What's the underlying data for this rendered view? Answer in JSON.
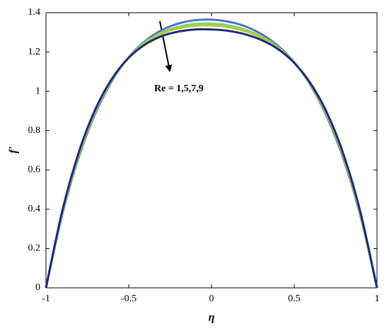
{
  "chart_data": {
    "type": "line",
    "xlabel": "η",
    "ylabel": "f'",
    "annotation": "Re = 1,5,7,9",
    "x": [
      -1,
      -0.9,
      -0.8,
      -0.7,
      -0.6,
      -0.5,
      -0.4,
      -0.3,
      -0.2,
      -0.1,
      0,
      0.1,
      0.2,
      0.3,
      0.4,
      0.5,
      0.6,
      0.7,
      0.8,
      0.9,
      1
    ],
    "series": [
      {
        "color": "#4f6fd6",
        "values": [
          0,
          0.378,
          0.67,
          0.891,
          1.055,
          1.174,
          1.256,
          1.312,
          1.345,
          1.362,
          1.365,
          1.355,
          1.332,
          1.292,
          1.233,
          1.148,
          1.029,
          0.866,
          0.65,
          0.366,
          0
        ]
      },
      {
        "color": "#7fd66b",
        "values": [
          0,
          0.386,
          0.68,
          0.9,
          1.06,
          1.173,
          1.25,
          1.3,
          1.329,
          1.343,
          1.345,
          1.336,
          1.315,
          1.28,
          1.226,
          1.146,
          1.033,
          0.875,
          0.66,
          0.373,
          0
        ]
      },
      {
        "color": "#b5c934",
        "values": [
          0,
          0.389,
          0.684,
          0.904,
          1.062,
          1.172,
          1.246,
          1.293,
          1.321,
          1.334,
          1.335,
          1.327,
          1.307,
          1.274,
          1.223,
          1.146,
          1.035,
          0.879,
          0.664,
          0.377,
          0
        ]
      },
      {
        "color": "#1c2a7a",
        "values": [
          0,
          0.397,
          0.694,
          0.912,
          1.066,
          1.171,
          1.239,
          1.281,
          1.304,
          1.315,
          1.315,
          1.308,
          1.291,
          1.262,
          1.216,
          1.145,
          1.039,
          0.887,
          0.674,
          0.385,
          0
        ]
      }
    ],
    "xlim": [
      -1,
      1
    ],
    "xticks": [
      -1,
      -0.5,
      0,
      0.5,
      1
    ],
    "ylim": [
      0,
      1.4
    ],
    "yticks": [
      0,
      0.2,
      0.4,
      0.6,
      0.8,
      1,
      1.2,
      1.4
    ],
    "grid": false
  }
}
